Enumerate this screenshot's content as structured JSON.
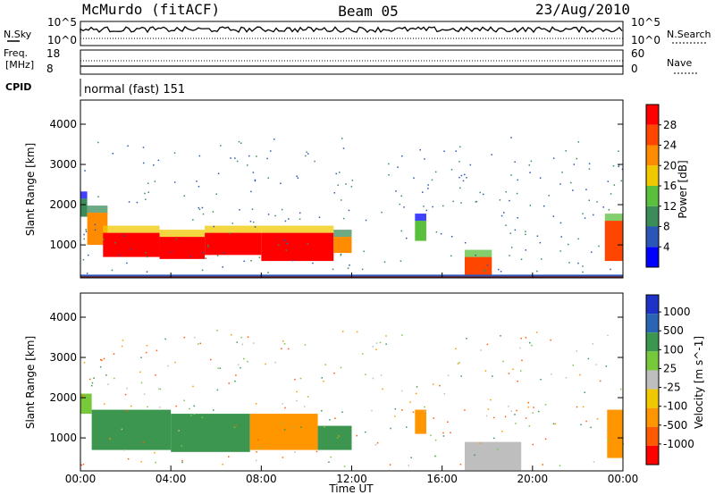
{
  "header": {
    "station": "McMurdo (fitACF)",
    "beam": "Beam 05",
    "date": "23/Aug/2010",
    "cpid_label": "CPID",
    "cpid_mode": "normal (fast) 151"
  },
  "noise_panel": {
    "left_label": "N.Sky",
    "right_label": "N.Search",
    "left_ticks": [
      "10^5",
      "10^0"
    ],
    "right_ticks": [
      "10^5",
      "10^0"
    ]
  },
  "freq_panel": {
    "left_label_1": "Freq.",
    "left_label_2": "[MHz]",
    "left_ticks": [
      "18",
      "8"
    ],
    "right_label": "Nave",
    "right_ticks": [
      "60",
      "0"
    ]
  },
  "colors": {
    "power": [
      "#0000ff",
      "#2a56b8",
      "#3c8c5a",
      "#5abf3c",
      "#f0c800",
      "#ff8c00",
      "#ff4600",
      "#ff0000"
    ],
    "velocity": [
      "#ff0000",
      "#ff5a00",
      "#ff9600",
      "#f0c800",
      "#bebebe",
      "#78c83c",
      "#3c9650",
      "#2a64b4",
      "#1e32c8"
    ],
    "ground_scatter": "#bebebe"
  },
  "chart_data": [
    {
      "type": "heatmap",
      "title": "",
      "xlabel": "Time UT",
      "ylabel": "Slant Range [km]",
      "x_ticks": [
        "00:00",
        "04:00",
        "08:00",
        "12:00",
        "16:00",
        "20:00",
        "00:00"
      ],
      "xlim": [
        0,
        24
      ],
      "ylim": [
        180,
        4600
      ],
      "y_ticks": [
        1000,
        2000,
        3000,
        4000
      ],
      "colorbar": {
        "label": "Power [dB]",
        "ticks": [
          "4",
          "8",
          "12",
          "16",
          "20",
          "24",
          "28"
        ],
        "range": [
          0,
          32
        ]
      },
      "regions": [
        {
          "t0": 0.0,
          "t1": 0.3,
          "top": 2150,
          "bottom": 1700,
          "level": 2
        },
        {
          "t0": 0.3,
          "t1": 1.2,
          "top": 1800,
          "bottom": 1000,
          "level": 5
        },
        {
          "t0": 1.0,
          "t1": 3.5,
          "top": 1300,
          "bottom": 700,
          "level": 7
        },
        {
          "t0": 3.5,
          "t1": 5.5,
          "top": 1200,
          "bottom": 650,
          "level": 7
        },
        {
          "t0": 5.5,
          "t1": 8.0,
          "top": 1300,
          "bottom": 750,
          "level": 7
        },
        {
          "t0": 8.0,
          "t1": 11.2,
          "top": 1300,
          "bottom": 600,
          "level": 7
        },
        {
          "t0": 11.2,
          "t1": 12.0,
          "top": 1200,
          "bottom": 800,
          "level": 5
        },
        {
          "t0": 14.8,
          "t1": 15.3,
          "top": 1600,
          "bottom": 1100,
          "level": 3
        },
        {
          "t0": 17.0,
          "t1": 18.2,
          "top": 700,
          "bottom": 200,
          "level": 6
        },
        {
          "t0": 23.2,
          "t1": 24.0,
          "top": 1600,
          "bottom": 600,
          "level": 6
        }
      ],
      "annotations": []
    },
    {
      "type": "heatmap",
      "title": "",
      "xlabel": "Time UT",
      "ylabel": "Slant Range [km]",
      "x_ticks": [
        "00:00",
        "04:00",
        "08:00",
        "12:00",
        "16:00",
        "20:00",
        "00:00"
      ],
      "xlim": [
        0,
        24
      ],
      "ylim": [
        180,
        4600
      ],
      "y_ticks": [
        1000,
        2000,
        3000,
        4000
      ],
      "colorbar": {
        "label": "Velocity [m s^-1]",
        "ticks": [
          "1000",
          "500",
          "100",
          "25",
          "-25",
          "-100",
          "-500",
          "-1000"
        ]
      },
      "regions": [
        {
          "t0": 0.0,
          "t1": 0.5,
          "top": 2100,
          "bottom": 1600,
          "vel": 5
        },
        {
          "t0": 0.5,
          "t1": 4.0,
          "top": 1700,
          "bottom": 700,
          "vel": 6
        },
        {
          "t0": 4.0,
          "t1": 7.5,
          "top": 1600,
          "bottom": 650,
          "vel": 6
        },
        {
          "t0": 7.5,
          "t1": 10.5,
          "top": 1600,
          "bottom": 700,
          "vel": 2
        },
        {
          "t0": 10.5,
          "t1": 12.0,
          "top": 1300,
          "bottom": 700,
          "vel": 6
        },
        {
          "t0": 14.8,
          "t1": 15.3,
          "top": 1700,
          "bottom": 1100,
          "vel": 2
        },
        {
          "t0": 17.0,
          "t1": 19.5,
          "top": 900,
          "bottom": 200,
          "vel": 4
        },
        {
          "t0": 23.3,
          "t1": 24.0,
          "top": 1700,
          "bottom": 500,
          "vel": 2
        }
      ]
    }
  ]
}
